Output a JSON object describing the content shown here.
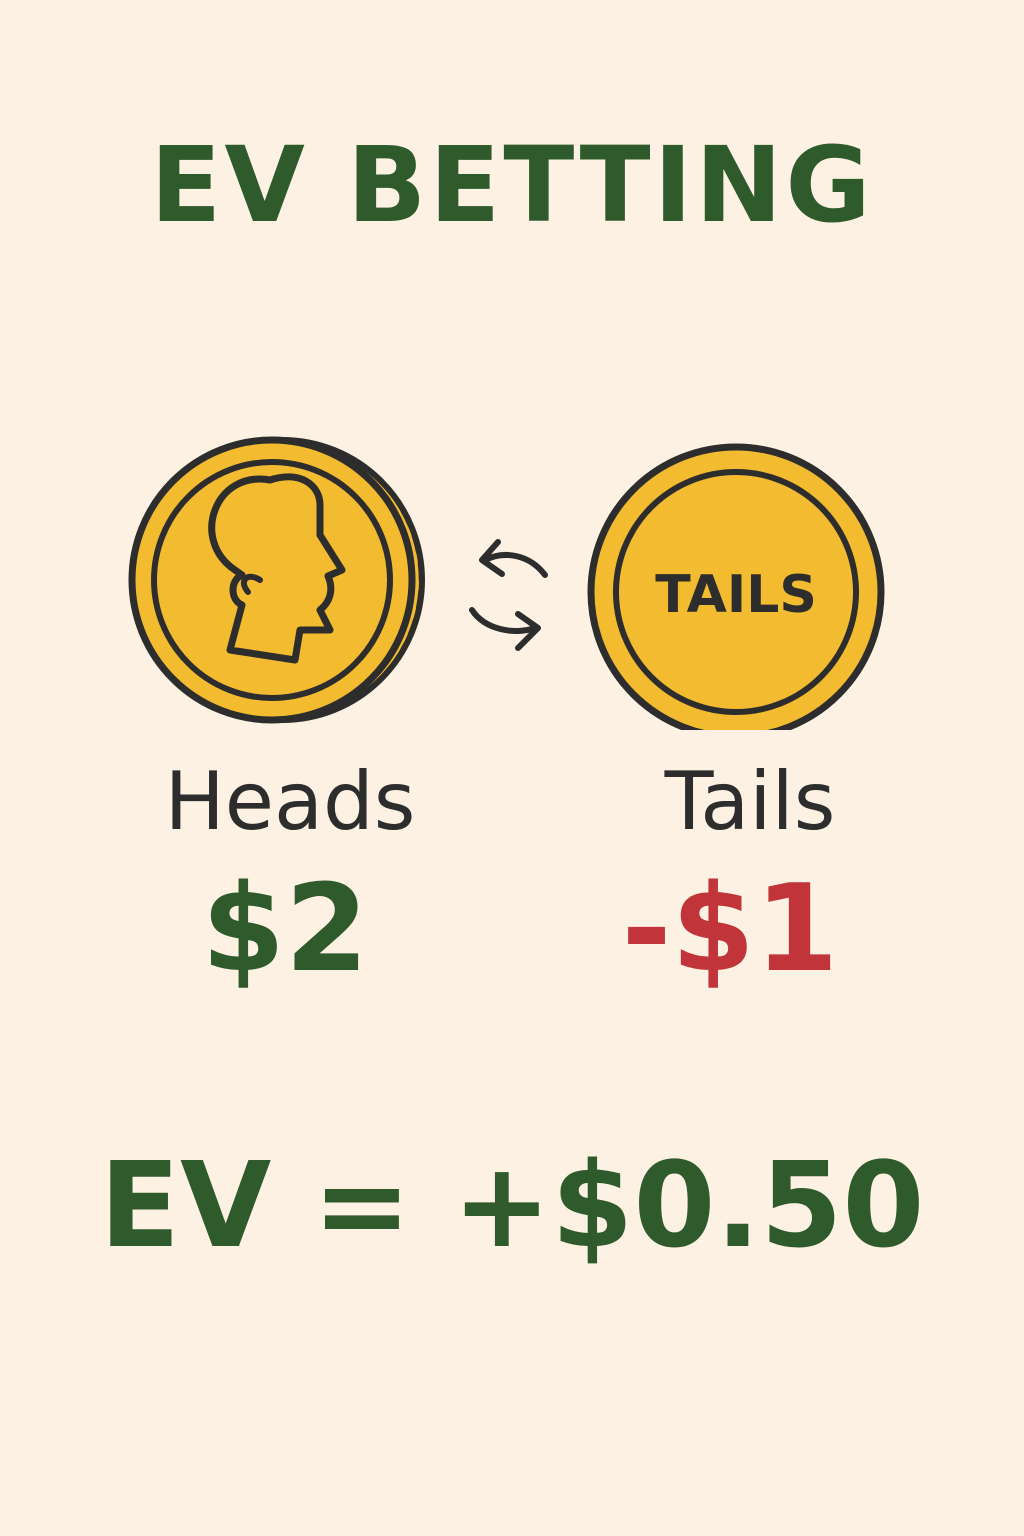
{
  "title": "EV BETTING",
  "coins": {
    "heads": {
      "icon": "head-profile-icon",
      "label": "Heads",
      "payout": "$2",
      "payout_color": "#2f5a2c"
    },
    "tails": {
      "coin_text": "TAILS",
      "label": "Tails",
      "payout": "-$1",
      "payout_color": "#c0343a"
    },
    "swap_icon": "swap-arrows-icon"
  },
  "expected_value": "EV = +$0.50",
  "colors": {
    "background": "#fcf1e2",
    "green": "#2f5a2c",
    "red": "#c0343a",
    "coin_gold": "#f2bb30",
    "outline": "#2d2d2d"
  }
}
